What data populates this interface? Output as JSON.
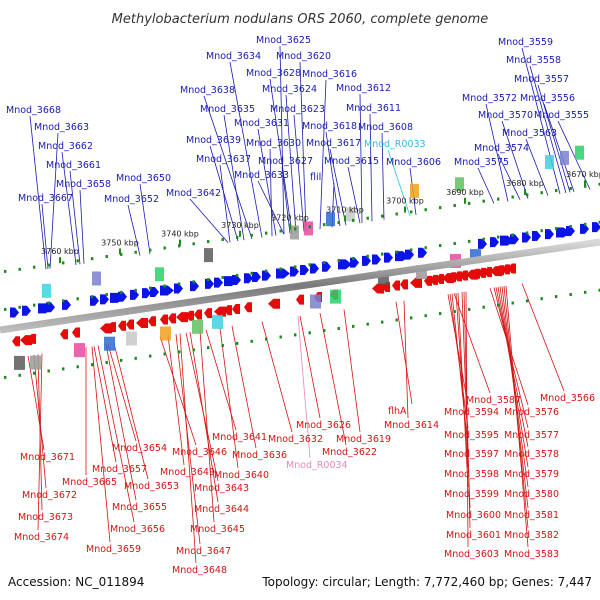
{
  "title": "Methylobacterium nodulans ORS 2060, complete genome",
  "footer": {
    "accession": "Accession: NC_011894",
    "summary": "Topology: circular; Length: 7,772,460 bp; Genes: 7,447"
  },
  "scale_ticks": [
    "3670 kbp",
    "3680 kbp",
    "3690 kbp",
    "3700 kbp",
    "3710 kbp",
    "3720 kbp",
    "3730 kbp",
    "3740 kbp",
    "3750 kbp",
    "3760 kbp"
  ],
  "top_labels": [
    {
      "text": "Mnod_3668",
      "color": "blue"
    },
    {
      "text": "Mnod_3663",
      "color": "blue"
    },
    {
      "text": "Mnod_3662",
      "color": "blue"
    },
    {
      "text": "Mnod_3661",
      "color": "blue"
    },
    {
      "text": "Mnod_3658",
      "color": "blue"
    },
    {
      "text": "Mnod_3667",
      "color": "blue"
    },
    {
      "text": "Mnod_3650",
      "color": "blue"
    },
    {
      "text": "Mnod_3652",
      "color": "blue"
    },
    {
      "text": "Mnod_3642",
      "color": "blue"
    },
    {
      "text": "Mnod_3637",
      "color": "blue"
    },
    {
      "text": "Mnod_3639",
      "color": "blue"
    },
    {
      "text": "Mnod_3635",
      "color": "blue"
    },
    {
      "text": "Mnod_3638",
      "color": "blue"
    },
    {
      "text": "Mnod_3634",
      "color": "blue"
    },
    {
      "text": "Mnod_3625",
      "color": "blue"
    },
    {
      "text": "Mnod_3628",
      "color": "blue"
    },
    {
      "text": "Mnod_3624",
      "color": "blue"
    },
    {
      "text": "Mnod_3631",
      "color": "blue"
    },
    {
      "text": "Mnod_3630",
      "color": "blue"
    },
    {
      "text": "Mnod_3627",
      "color": "blue"
    },
    {
      "text": "Mnod_3633",
      "color": "blue"
    },
    {
      "text": "Mnod_3620",
      "color": "blue"
    },
    {
      "text": "Mnod_3616",
      "color": "blue"
    },
    {
      "text": "Mnod_3623",
      "color": "blue"
    },
    {
      "text": "Mnod_3618",
      "color": "blue"
    },
    {
      "text": "Mnod_3617",
      "color": "blue"
    },
    {
      "text": "flil",
      "color": "blue"
    },
    {
      "text": "Mnod_3612",
      "color": "blue"
    },
    {
      "text": "Mnod_3611",
      "color": "blue"
    },
    {
      "text": "Mnod_3608",
      "color": "blue"
    },
    {
      "text": "Mnod_3615",
      "color": "blue"
    },
    {
      "text": "Mnod_R0033",
      "color": "cyan"
    },
    {
      "text": "Mnod_3606",
      "color": "blue"
    },
    {
      "text": "Mnod_3559",
      "color": "blue"
    },
    {
      "text": "Mnod_3558",
      "color": "blue"
    },
    {
      "text": "Mnod_3557",
      "color": "blue"
    },
    {
      "text": "Mnod_3572",
      "color": "blue"
    },
    {
      "text": "Mnod_3556",
      "color": "blue"
    },
    {
      "text": "Mnod_3570",
      "color": "blue"
    },
    {
      "text": "Mnod_3555",
      "color": "blue"
    },
    {
      "text": "Mnod_3563",
      "color": "blue"
    },
    {
      "text": "Mnod_3574",
      "color": "blue"
    },
    {
      "text": "Mnod_3575",
      "color": "blue"
    }
  ],
  "bottom_labels": [
    {
      "text": "Mnod_3671",
      "color": "red"
    },
    {
      "text": "Mnod_3665",
      "color": "red"
    },
    {
      "text": "Mnod_3672",
      "color": "red"
    },
    {
      "text": "Mnod_3673",
      "color": "red"
    },
    {
      "text": "Mnod_3674",
      "color": "red"
    },
    {
      "text": "Mnod_3657",
      "color": "red"
    },
    {
      "text": "Mnod_3654",
      "color": "red"
    },
    {
      "text": "Mnod_3653",
      "color": "red"
    },
    {
      "text": "Mnod_3655",
      "color": "red"
    },
    {
      "text": "Mnod_3656",
      "color": "red"
    },
    {
      "text": "Mnod_3659",
      "color": "red"
    },
    {
      "text": "Mnod_3646",
      "color": "red"
    },
    {
      "text": "Mnod_3649",
      "color": "red"
    },
    {
      "text": "Mnod_3643",
      "color": "red"
    },
    {
      "text": "Mnod_3644",
      "color": "red"
    },
    {
      "text": "Mnod_3645",
      "color": "red"
    },
    {
      "text": "Mnod_3647",
      "color": "red"
    },
    {
      "text": "Mnod_3648",
      "color": "red"
    },
    {
      "text": "Mnod_3641",
      "color": "red"
    },
    {
      "text": "Mnod_3640",
      "color": "red"
    },
    {
      "text": "Mnod_3636",
      "color": "red"
    },
    {
      "text": "Mnod_3632",
      "color": "red"
    },
    {
      "text": "Mnod_3626",
      "color": "red"
    },
    {
      "text": "Mnod_3622",
      "color": "red"
    },
    {
      "text": "Mnod_3619",
      "color": "red"
    },
    {
      "text": "Mnod_R0034",
      "color": "pink"
    },
    {
      "text": "flhA",
      "color": "red"
    },
    {
      "text": "Mnod_3614",
      "color": "red"
    },
    {
      "text": "Mnod_3587",
      "color": "red"
    },
    {
      "text": "Mnod_3594",
      "color": "red"
    },
    {
      "text": "Mnod_3595",
      "color": "red"
    },
    {
      "text": "Mnod_3597",
      "color": "red"
    },
    {
      "text": "Mnod_3598",
      "color": "red"
    },
    {
      "text": "Mnod_3599",
      "color": "red"
    },
    {
      "text": "Mnod_3600",
      "color": "red"
    },
    {
      "text": "Mnod_3601",
      "color": "red"
    },
    {
      "text": "Mnod_3603",
      "color": "red"
    },
    {
      "text": "Mnod_3566",
      "color": "red"
    },
    {
      "text": "Mnod_3576",
      "color": "red"
    },
    {
      "text": "Mnod_3577",
      "color": "red"
    },
    {
      "text": "Mnod_3578",
      "color": "red"
    },
    {
      "text": "Mnod_3579",
      "color": "red"
    },
    {
      "text": "Mnod_3580",
      "color": "red"
    },
    {
      "text": "Mnod_3581",
      "color": "red"
    },
    {
      "text": "Mnod_3582",
      "color": "red"
    },
    {
      "text": "Mnod_3583",
      "color": "red"
    }
  ],
  "colors": {
    "forward_gene": "#0a14e6",
    "reverse_gene": "#e60a0a",
    "blue_label": "#1a1ab0",
    "red_label": "#d41414",
    "trna_label": "#34b8e0",
    "rrna_label": "#e48ab8",
    "backbone": "#8c8c8c",
    "tick_green": "#1c8a1c"
  }
}
